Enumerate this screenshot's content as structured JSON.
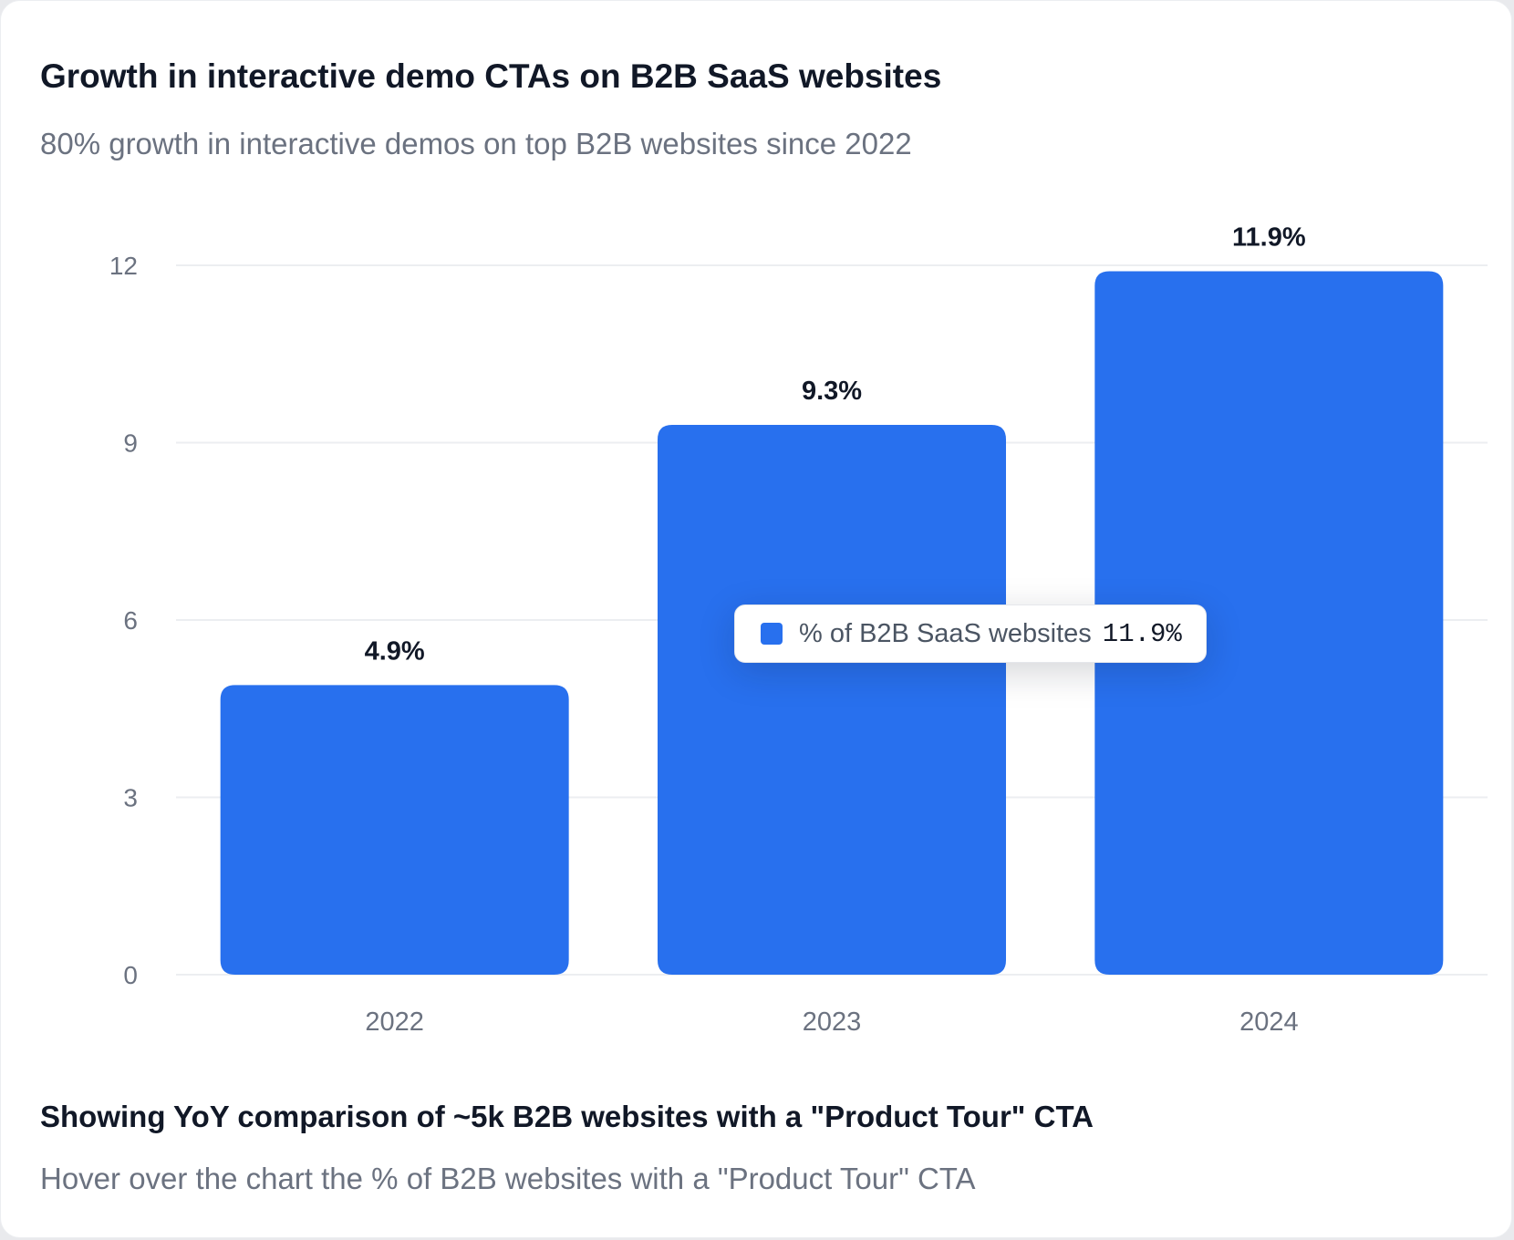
{
  "card": {
    "title": "Growth in interactive demo CTAs on B2B SaaS websites",
    "subtitle": "80% growth in interactive demos on top B2B websites since 2022",
    "footer_title": "Showing YoY comparison of ~5k B2B websites with a \"Product Tour\" CTA",
    "footer_note": "Hover over the chart the % of B2B websites with a \"Product Tour\" CTA"
  },
  "tooltip": {
    "label": "% of B2B SaaS websites",
    "value": "11.9%"
  },
  "colors": {
    "bar": "#2870EE",
    "grid": "#ECEEF1"
  },
  "chart_data": {
    "type": "bar",
    "title": "Growth in interactive demo CTAs on B2B SaaS websites",
    "categories": [
      "2022",
      "2023",
      "2024"
    ],
    "series": [
      {
        "name": "% of B2B SaaS websites",
        "values": [
          4.9,
          9.3,
          11.9
        ],
        "labels": [
          "4.9%",
          "9.3%",
          "11.9%"
        ]
      }
    ],
    "yticks": [
      "0",
      "3",
      "6",
      "9",
      "12"
    ],
    "ytick_values": [
      0,
      3,
      6,
      9,
      12
    ],
    "ylim": [
      0,
      12
    ],
    "xlabel": "",
    "ylabel": "",
    "grid": true,
    "legend": "tooltip"
  }
}
